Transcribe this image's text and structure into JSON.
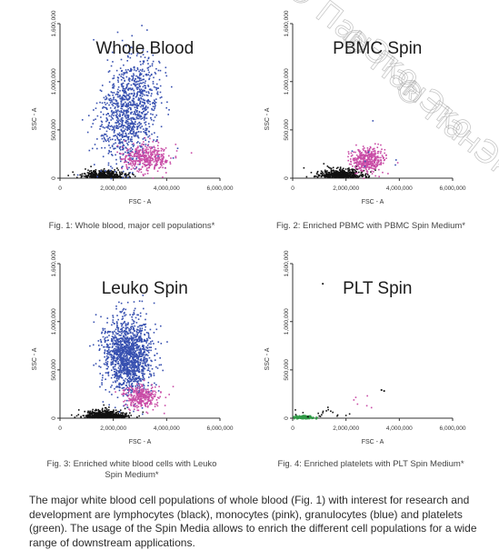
{
  "watermark": "® ПанЭко",
  "colors": {
    "black": "#111111",
    "blue": "#3750b0",
    "pink": "#c94ca6",
    "green": "#2f9a46",
    "axis": "#333333"
  },
  "captions": {
    "fig1": "Fig. 1: Whole blood, major cell populations*",
    "fig2": "Fig. 2: Enriched PBMC with PBMC Spin Medium*",
    "fig3_line1": "Fig. 3: Enriched white blood cells with Leuko",
    "fig3_line2": "Spin Medium*",
    "fig4": "Fig. 4: Enriched platelets with PLT Spin Medium*"
  },
  "description": "The major white blood cell populations of whole blood (Fig. 1) with interest for research and development are lymphocytes (black), monocytes (pink), granulocytes (blue) and platelets (green). The usage of the Spin Media allows to enrich the different cell populations for a wide range of downstream applications.",
  "chart_data": [
    {
      "type": "scatter",
      "title": "Whole Blood",
      "xlabel": "FSC - A",
      "ylabel": "SSC - A",
      "xlim": [
        0,
        6000000
      ],
      "ylim": [
        0,
        1600000
      ],
      "xticks": [
        "0",
        "2,000,000",
        "4,000,000",
        "6,000,000"
      ],
      "yticks": [
        "0",
        "500,000",
        "1,000,000",
        "1,600,000"
      ],
      "clusters": [
        {
          "population": "lymphocytes",
          "color": "black",
          "cx": 1600000,
          "cy": 60000,
          "sx": 400000,
          "sy": 40000,
          "n": 420
        },
        {
          "population": "granulocytes",
          "color": "blue",
          "cx": 2600000,
          "cy": 700000,
          "sx": 550000,
          "sy": 280000,
          "n": 1100
        },
        {
          "population": "monocytes",
          "color": "pink",
          "cx": 3200000,
          "cy": 220000,
          "sx": 450000,
          "sy": 70000,
          "n": 380
        }
      ]
    },
    {
      "type": "scatter",
      "title": "PBMC Spin",
      "xlabel": "FSC - A",
      "ylabel": "SSC - A",
      "xlim": [
        0,
        6000000
      ],
      "ylim": [
        0,
        1600000
      ],
      "xticks": [
        "0",
        "2,000,000",
        "4,000,000",
        "6,000,000"
      ],
      "yticks": [
        "0",
        "500,000",
        "1,000,000",
        "1,600,000"
      ],
      "clusters": [
        {
          "population": "lymphocytes",
          "color": "black",
          "cx": 1800000,
          "cy": 80000,
          "sx": 420000,
          "sy": 45000,
          "n": 480
        },
        {
          "population": "monocytes",
          "color": "pink",
          "cx": 2800000,
          "cy": 200000,
          "sx": 300000,
          "sy": 60000,
          "n": 380
        },
        {
          "population": "granulocytes",
          "color": "blue",
          "cx": 3000000,
          "cy": 350000,
          "sx": 700000,
          "sy": 250000,
          "n": 8
        }
      ]
    },
    {
      "type": "scatter",
      "title": "Leuko Spin",
      "xlabel": "FSC - A",
      "ylabel": "SSC - A",
      "xlim": [
        0,
        6000000
      ],
      "ylim": [
        0,
        1600000
      ],
      "xticks": [
        "0",
        "2,000,000",
        "4,000,000",
        "6,000,000"
      ],
      "yticks": [
        "0",
        "500,000",
        "1,000,000",
        "1,600,000"
      ],
      "clusters": [
        {
          "population": "lymphocytes",
          "color": "black",
          "cx": 1700000,
          "cy": 60000,
          "sx": 400000,
          "sy": 40000,
          "n": 520
        },
        {
          "population": "granulocytes",
          "color": "blue",
          "cx": 2500000,
          "cy": 650000,
          "sx": 450000,
          "sy": 200000,
          "n": 1400
        },
        {
          "population": "monocytes",
          "color": "pink",
          "cx": 3000000,
          "cy": 230000,
          "sx": 350000,
          "sy": 55000,
          "n": 300
        }
      ]
    },
    {
      "type": "scatter",
      "title": "PLT Spin",
      "xlabel": "FSC - A",
      "ylabel": "SSC - A",
      "xlim": [
        0,
        6000000
      ],
      "ylim": [
        0,
        1600000
      ],
      "xticks": [
        "0",
        "2,000,000",
        "4,000,000",
        "6,000,000"
      ],
      "yticks": [
        "0",
        "500,000",
        "1,000,000",
        "1,600,000"
      ],
      "clusters": [
        {
          "population": "platelets",
          "color": "green",
          "cx": 400000,
          "cy": 15000,
          "sx": 200000,
          "sy": 10000,
          "n": 160
        },
        {
          "population": "lymphocytes",
          "color": "black",
          "cx": 1200000,
          "cy": 60000,
          "sx": 900000,
          "sy": 70000,
          "n": 25
        },
        {
          "population": "monocytes",
          "color": "pink",
          "cx": 2700000,
          "cy": 160000,
          "sx": 350000,
          "sy": 60000,
          "n": 6
        }
      ],
      "outliers": [
        [
          1100000,
          1400000
        ],
        [
          3400000,
          290000
        ],
        [
          3300000,
          300000
        ]
      ]
    }
  ]
}
